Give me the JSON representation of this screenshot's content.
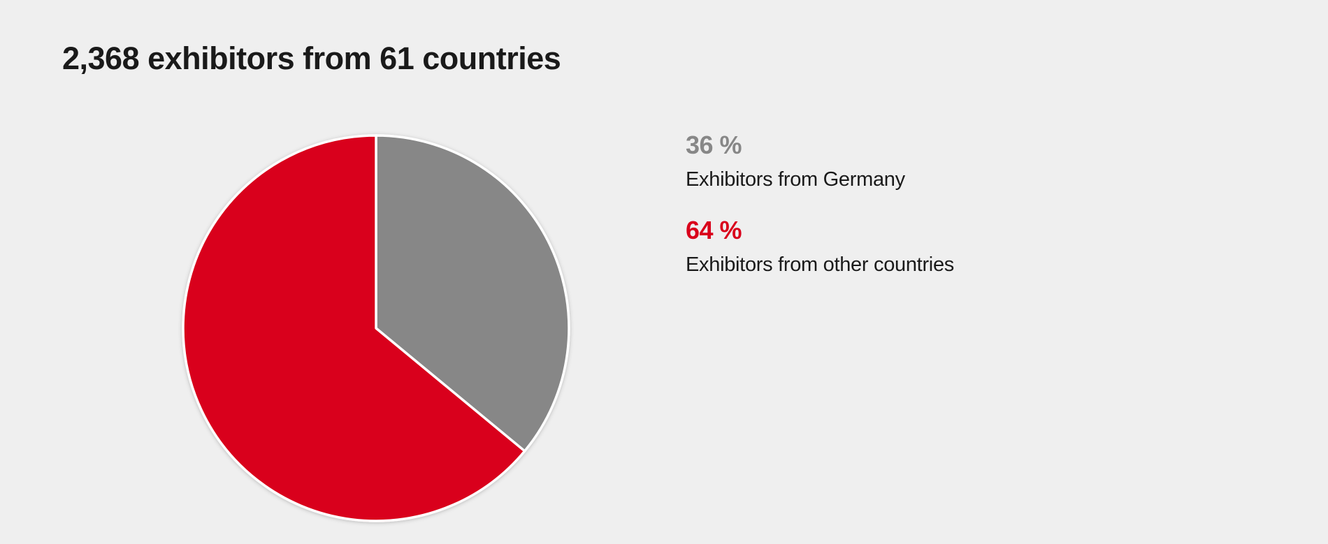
{
  "title": "2,368 exhibitors from 61 countries",
  "colors": {
    "background": "#efefef",
    "germany": "#878787",
    "other": "#d9001b",
    "slice_border": "#ffffff"
  },
  "chart_data": {
    "type": "pie",
    "title": "2,368 exhibitors from 61 countries",
    "slices": [
      {
        "label": "Exhibitors from Germany",
        "value": 36,
        "value_label": "36 %",
        "color": "#878787"
      },
      {
        "label": "Exhibitors from other countries",
        "value": 64,
        "value_label": "64 %",
        "color": "#d9001b"
      }
    ],
    "start_angle": "12 o'clock",
    "direction": "clockwise",
    "legend_position": "right"
  }
}
